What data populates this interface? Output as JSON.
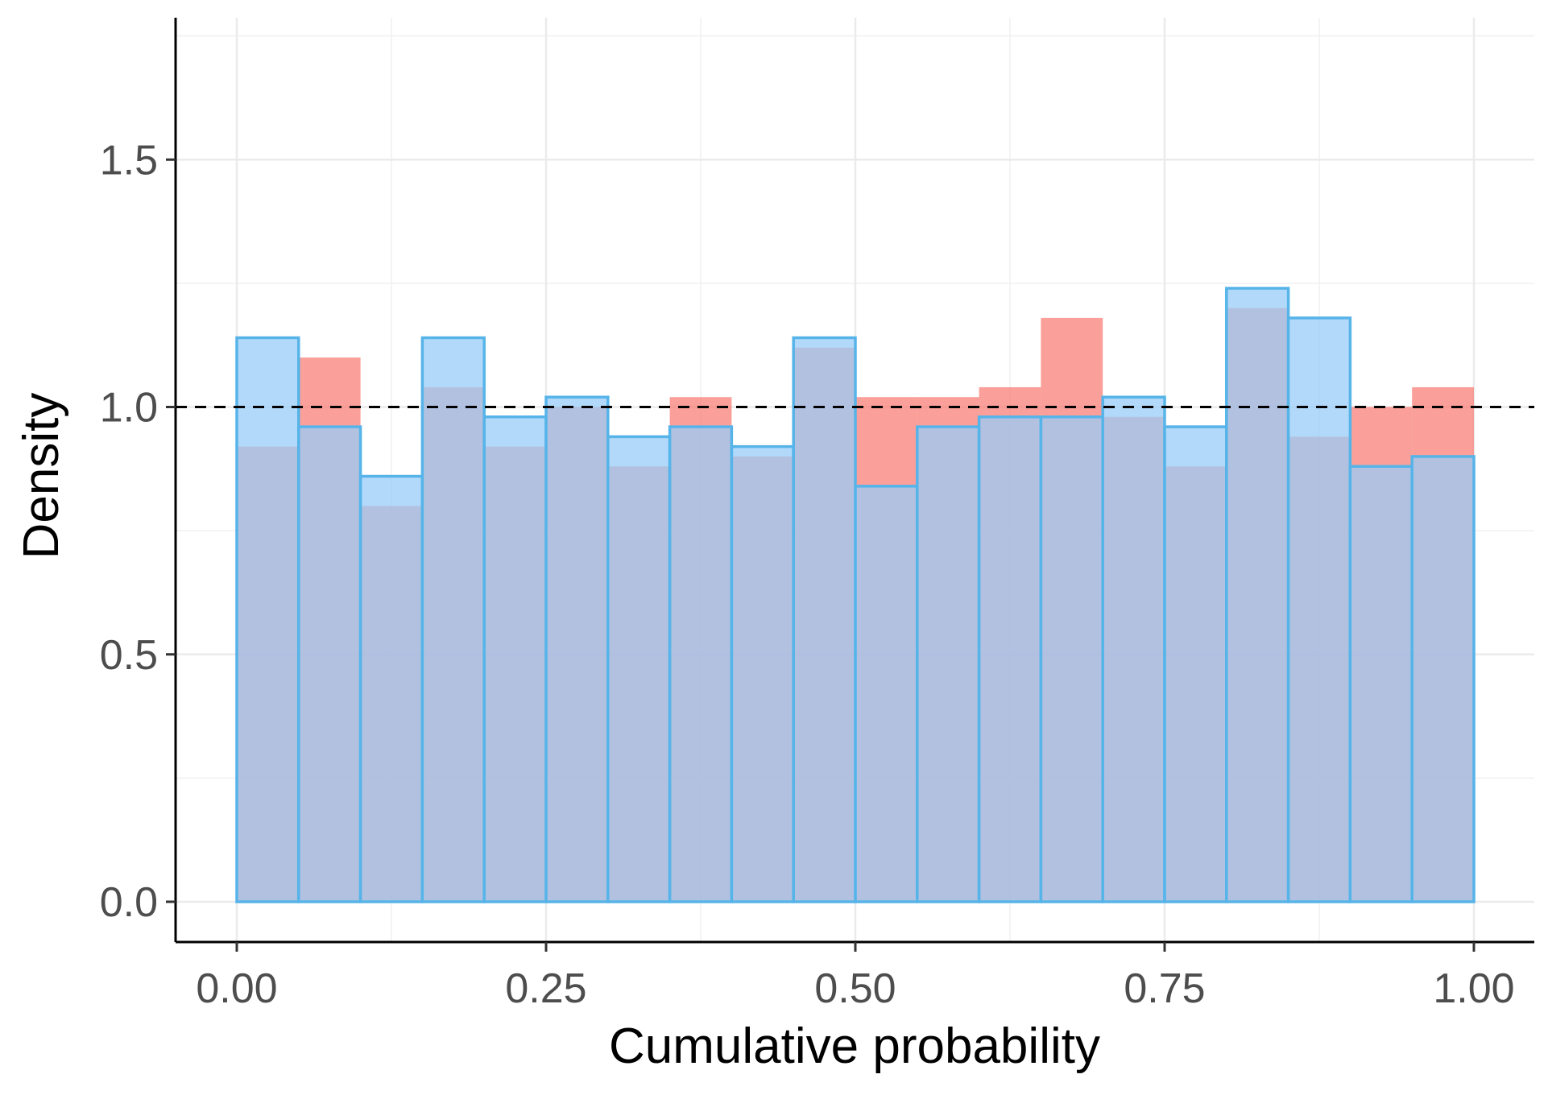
{
  "chart_data": {
    "type": "bar",
    "title": "",
    "xlabel": "Cumulative probability",
    "ylabel": "Density",
    "xlim": [
      -0.05,
      1.05
    ],
    "ylim": [
      -0.08,
      1.78
    ],
    "x_ticks": [
      0.0,
      0.25,
      0.5,
      0.75,
      1.0
    ],
    "x_tick_labels": [
      "0.00",
      "0.25",
      "0.50",
      "0.75",
      "1.00"
    ],
    "y_ticks": [
      0.0,
      0.5,
      1.0,
      1.5
    ],
    "y_tick_labels": [
      "0.0",
      "0.5",
      "1.0",
      "1.5"
    ],
    "grid": true,
    "bin_width": 0.05,
    "bin_starts": [
      0.0,
      0.05,
      0.1,
      0.15,
      0.2,
      0.25,
      0.3,
      0.35,
      0.4,
      0.45,
      0.5,
      0.55,
      0.6,
      0.65,
      0.7,
      0.75,
      0.8,
      0.85,
      0.9,
      0.95
    ],
    "reference_line": {
      "y": 1.0,
      "style": "dashed",
      "color": "#000000"
    },
    "series": [
      {
        "name": "red",
        "fill": "#F8766D",
        "opacity": 0.7,
        "outline": false,
        "values": [
          0.92,
          1.1,
          0.8,
          1.04,
          0.92,
          1.0,
          0.88,
          1.02,
          0.9,
          1.12,
          1.02,
          1.02,
          1.04,
          1.18,
          0.98,
          0.88,
          1.2,
          0.94,
          1.0,
          1.04
        ]
      },
      {
        "name": "blue",
        "fill": "#99CCF8",
        "stroke": "#56B4E9",
        "opacity": 0.75,
        "outline": true,
        "values": [
          1.14,
          0.96,
          0.86,
          1.14,
          0.98,
          1.02,
          0.94,
          0.96,
          0.92,
          1.14,
          0.84,
          0.96,
          0.98,
          0.98,
          1.02,
          0.96,
          1.24,
          1.18,
          0.88,
          0.9
        ]
      }
    ]
  }
}
